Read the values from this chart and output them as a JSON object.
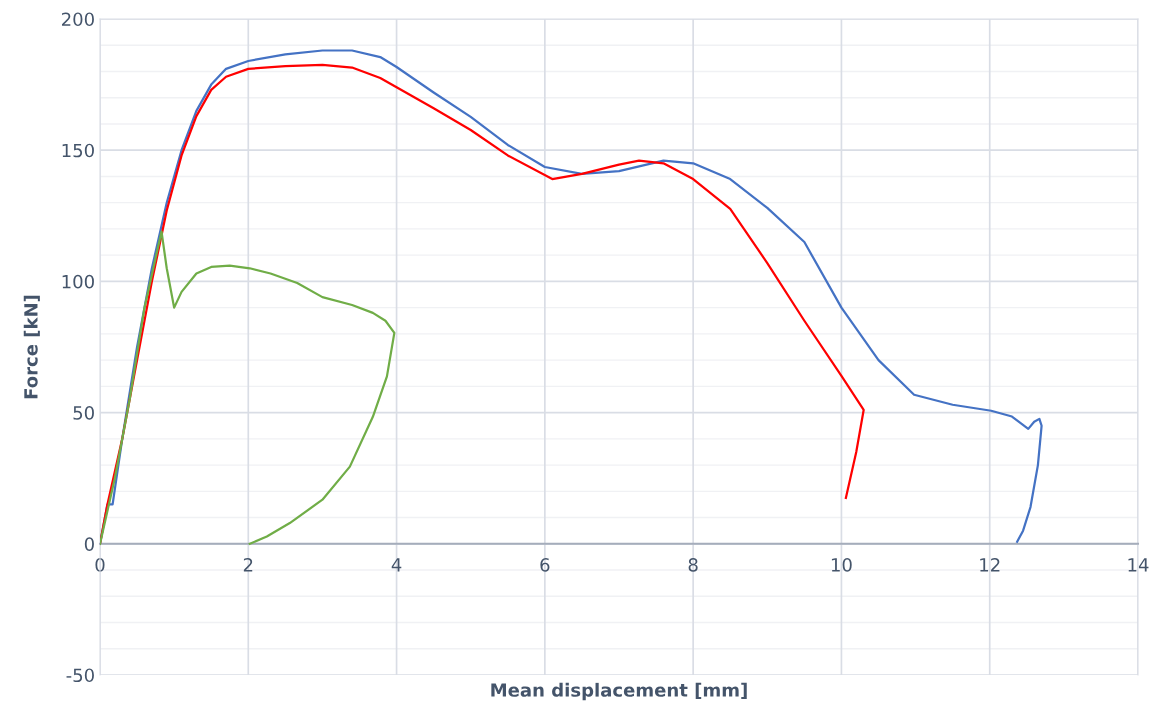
{
  "chart_data": {
    "type": "line",
    "xlabel": "Mean displacement [mm]",
    "ylabel": "Force [kN]",
    "xlim": [
      0,
      14
    ],
    "xticks": [
      0,
      2,
      4,
      6,
      8,
      10,
      12,
      14
    ],
    "ylim": [
      -50,
      200
    ],
    "yticks": [
      -50,
      0,
      50,
      100,
      150,
      200
    ],
    "grid": true,
    "legend": false,
    "marker": "none",
    "line_style": "solid",
    "series": [
      {
        "color": "#4472c4",
        "x": [
          0,
          0.1,
          0.17,
          0.3,
          0.5,
          0.7,
          0.9,
          1.1,
          1.3,
          1.5,
          1.7,
          2.0,
          2.5,
          3.0,
          3.4,
          3.78,
          4.0,
          4.5,
          5.0,
          5.5,
          6.0,
          6.5,
          7.0,
          7.6,
          8.0,
          8.5,
          9.0,
          9.5,
          10.0,
          10.5,
          10.98,
          11.5,
          12.02,
          12.3,
          12.52,
          12.6,
          12.67,
          12.7,
          12.65,
          12.55,
          12.45,
          12.37
        ],
        "values": [
          0,
          15,
          15,
          40,
          75,
          105,
          130,
          150,
          165,
          175,
          181,
          184,
          186.5,
          188,
          188,
          185.5,
          181.7,
          172,
          162.7,
          152,
          143.6,
          141,
          142,
          146,
          145,
          139,
          128,
          115,
          90,
          70,
          56.8,
          53,
          50.7,
          48.5,
          43.8,
          46.5,
          47.6,
          45,
          30,
          14,
          5,
          0.8
        ]
      },
      {
        "color": "#ff0000",
        "x": [
          0,
          0.1,
          0.3,
          0.5,
          0.7,
          0.9,
          1.1,
          1.3,
          1.5,
          1.7,
          2.0,
          2.5,
          3.0,
          3.4,
          3.78,
          4.0,
          4.5,
          5.0,
          5.5,
          6.1,
          6.5,
          7.0,
          7.27,
          7.6,
          8.0,
          8.5,
          9.0,
          9.5,
          10.0,
          10.3,
          10.2,
          10.06
        ],
        "values": [
          0,
          15,
          40,
          70,
          100,
          127,
          148,
          163,
          173,
          178,
          181,
          182,
          182.5,
          181.5,
          177.5,
          174,
          166,
          157.7,
          148,
          139,
          141,
          144.5,
          146,
          145,
          139,
          127.6,
          107,
          85,
          64,
          51,
          35,
          17.5
        ]
      },
      {
        "color": "#70ad47",
        "x": [
          0,
          0.2,
          0.4,
          0.6,
          0.83,
          0.9,
          1.0,
          1.1,
          1.3,
          1.5,
          1.75,
          2.02,
          2.3,
          2.66,
          3.0,
          3.4,
          3.68,
          3.85,
          3.97,
          3.87,
          3.68,
          3.37,
          3.0,
          2.56,
          2.25,
          2.02
        ],
        "values": [
          0,
          25,
          55,
          90,
          119,
          105,
          90,
          96,
          103,
          105.5,
          106,
          105,
          103,
          99.4,
          94,
          91,
          88,
          85,
          80.4,
          63.8,
          48.4,
          29.4,
          16.8,
          7.9,
          2.8,
          0
        ]
      }
    ]
  }
}
